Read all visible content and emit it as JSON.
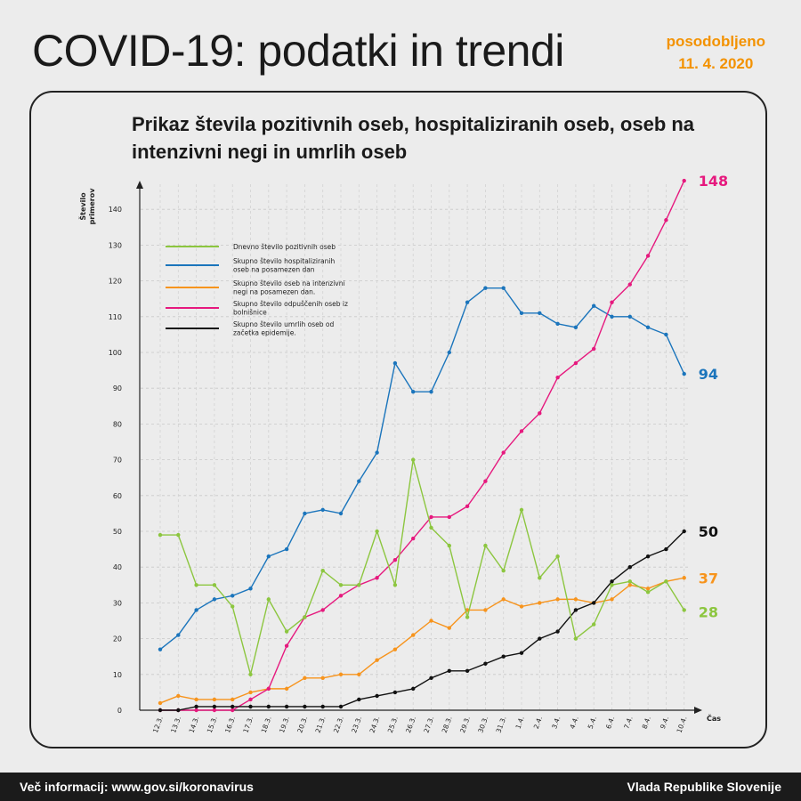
{
  "header": {
    "title": "COVID-19: podatki in trendi",
    "updated_label": "posodobljeno",
    "updated_date": "11. 4. 2020"
  },
  "footer": {
    "more_info": "Več informacij: www.gov.si/koronavirus",
    "publisher": "Vlada Republike Slovenije"
  },
  "chart_data": {
    "type": "line",
    "title": "Prikaz števila pozitivnih oseb, hospitaliziranih oseb, oseb na intenzivni negi in umrlih oseb",
    "ylabel": "Število primerov",
    "xlabel": "Čas",
    "ylim": [
      0,
      150
    ],
    "yticks": [
      0,
      10,
      20,
      30,
      40,
      50,
      60,
      70,
      80,
      90,
      100,
      110,
      120,
      130,
      140
    ],
    "grid": true,
    "legend_position": "top-left",
    "categories": [
      "12.3.",
      "13.3.",
      "14.3.",
      "15.3.",
      "16.3.",
      "17.3.",
      "18.3.",
      "19.3.",
      "20.3.",
      "21.3.",
      "22.3.",
      "23.3.",
      "24.3.",
      "25.3.",
      "26.3.",
      "27.3.",
      "28.3.",
      "29.3.",
      "30.3.",
      "31.3.",
      "1.4.",
      "2.4.",
      "3.4.",
      "4.4.",
      "5.4.",
      "6.4.",
      "7.4.",
      "8.4.",
      "9.4.",
      "10.4."
    ],
    "series": [
      {
        "name": "Dnevno število pozitivnih oseb",
        "color": "#8cc63f",
        "end_label": "28",
        "values": [
          49,
          49,
          35,
          35,
          29,
          10,
          31,
          22,
          26,
          39,
          35,
          35,
          50,
          35,
          70,
          51,
          46,
          26,
          46,
          39,
          56,
          37,
          43,
          20,
          24,
          35,
          36,
          33,
          36,
          28
        ]
      },
      {
        "name": "Skupno število hospitaliziranih oseb na posamezen dan",
        "color": "#1b75bc",
        "end_label": "94",
        "values": [
          17,
          21,
          28,
          31,
          32,
          34,
          43,
          45,
          55,
          56,
          55,
          64,
          72,
          97,
          89,
          89,
          100,
          114,
          118,
          118,
          111,
          111,
          108,
          107,
          113,
          110,
          110,
          107,
          105,
          94
        ]
      },
      {
        "name": "Skupno število oseb na intenzivni negi na posamezen dan.",
        "color": "#f7941d",
        "end_label": "37",
        "values": [
          2,
          4,
          3,
          3,
          3,
          5,
          6,
          6,
          9,
          9,
          10,
          10,
          14,
          17,
          21,
          25,
          23,
          28,
          28,
          31,
          29,
          30,
          31,
          31,
          30,
          31,
          35,
          34,
          36,
          37
        ]
      },
      {
        "name": "Skupno število odpuščenih oseb iz bolnišnice",
        "color": "#e6197e",
        "end_label": "148",
        "values": [
          0,
          0,
          0,
          0,
          0,
          3,
          6,
          18,
          26,
          28,
          32,
          35,
          37,
          42,
          48,
          54,
          54,
          57,
          64,
          72,
          78,
          83,
          93,
          97,
          101,
          114,
          119,
          127,
          137,
          148
        ]
      },
      {
        "name": "Skupno število umrlih oseb od začetka epidemije.",
        "color": "#111111",
        "end_label": "50",
        "values": [
          0,
          0,
          1,
          1,
          1,
          1,
          1,
          1,
          1,
          1,
          1,
          3,
          4,
          5,
          6,
          9,
          11,
          11,
          13,
          15,
          16,
          20,
          22,
          28,
          30,
          36,
          40,
          43,
          45,
          50
        ]
      }
    ]
  }
}
